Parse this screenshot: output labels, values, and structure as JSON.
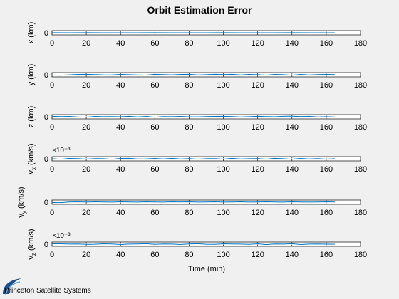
{
  "chart_data": {
    "type": "line",
    "title": "Orbit Estimation Error",
    "xlabel": "Time (min)",
    "xlim": [
      0,
      180
    ],
    "xticks": [
      "0",
      "20",
      "40",
      "60",
      "80",
      "100",
      "120",
      "140",
      "160",
      "180"
    ],
    "line_color": "#0072bd",
    "grid": false,
    "subplots": [
      {
        "ylabel": "x (km)",
        "yticks": [
          "0"
        ],
        "ylim": [
          -1,
          1
        ],
        "multiplier": "",
        "x": [
          0,
          10,
          20,
          30,
          40,
          50,
          60,
          70,
          80,
          90,
          100,
          110,
          120,
          130,
          140,
          150,
          160,
          165
        ],
        "y": [
          0.05,
          0.0,
          0.05,
          0.0,
          0.02,
          0.0,
          0.04,
          0.0,
          0.02,
          0.0,
          0.05,
          0.0,
          0.02,
          0.0,
          0.04,
          0.0,
          0.02,
          0.0
        ]
      },
      {
        "ylabel": "y (km)",
        "yticks": [
          "0"
        ],
        "ylim": [
          -1,
          1
        ],
        "multiplier": "",
        "x": [
          0,
          5,
          10,
          15,
          20,
          25,
          30,
          35,
          40,
          45,
          50,
          55,
          60,
          65,
          70,
          75,
          80,
          85,
          90,
          95,
          100,
          105,
          110,
          115,
          120,
          125,
          130,
          135,
          140,
          145,
          150,
          155,
          160,
          165
        ],
        "y": [
          -0.15,
          -0.2,
          -0.05,
          0.15,
          0.2,
          0.1,
          -0.05,
          -0.1,
          0.15,
          0.05,
          -0.1,
          -0.15,
          0.2,
          0.1,
          -0.05,
          0.15,
          0.2,
          -0.1,
          0.05,
          0.2,
          0.1,
          0.2,
          -0.1,
          0.15,
          0.05,
          -0.15,
          0.15,
          0.05,
          -0.2,
          0.15,
          -0.1,
          0.1,
          0.15,
          0.1
        ]
      },
      {
        "ylabel": "z (km)",
        "yticks": [
          "0"
        ],
        "ylim": [
          -1,
          1
        ],
        "multiplier": "",
        "x": [
          0,
          5,
          10,
          15,
          20,
          25,
          30,
          35,
          40,
          45,
          50,
          55,
          60,
          65,
          70,
          75,
          80,
          85,
          90,
          95,
          100,
          105,
          110,
          115,
          120,
          125,
          130,
          135,
          140,
          145,
          150,
          155,
          160,
          165
        ],
        "y": [
          0.2,
          0.1,
          0.15,
          -0.1,
          -0.2,
          0.15,
          0.05,
          0.1,
          0.0,
          0.2,
          -0.1,
          0.15,
          -0.2,
          0.1,
          0.05,
          0.15,
          0.0,
          -0.05,
          0.1,
          0.15,
          0.2,
          0.1,
          -0.1,
          0.05,
          0.2,
          0.1,
          0.0,
          0.2,
          0.3,
          0.1,
          0.2,
          -0.1,
          0.05,
          -0.1
        ]
      },
      {
        "ylabel": "vx (km/s)",
        "yticks": [
          "0"
        ],
        "ylim": [
          -1,
          1
        ],
        "multiplier": "×10⁻³",
        "x": [
          0,
          5,
          10,
          15,
          20,
          25,
          30,
          35,
          40,
          45,
          50,
          55,
          60,
          65,
          70,
          75,
          80,
          85,
          90,
          95,
          100,
          105,
          110,
          115,
          120,
          125,
          130,
          135,
          140,
          145,
          150,
          155,
          160,
          165
        ],
        "y": [
          0.05,
          -0.2,
          0.15,
          0.1,
          -0.15,
          0.1,
          0.05,
          -0.2,
          0.15,
          0.2,
          -0.1,
          -0.05,
          0.15,
          -0.1,
          0.2,
          -0.1,
          0.1,
          -0.15,
          0.05,
          0.1,
          -0.15,
          0.2,
          -0.1,
          0.05,
          0.1,
          -0.15,
          0.2,
          0.05,
          -0.2,
          0.15,
          -0.1,
          0.1,
          -0.15,
          0.05
        ]
      },
      {
        "ylabel": "vy (km/s)",
        "yticks": [
          "0"
        ],
        "ylim": [
          -1,
          1
        ],
        "multiplier": "",
        "x": [
          0,
          5,
          10,
          15,
          20,
          25,
          30,
          35,
          40,
          45,
          50,
          55,
          60,
          65,
          70,
          75,
          80,
          85,
          90,
          95,
          100,
          105,
          110,
          115,
          120,
          125,
          130,
          135,
          140,
          145,
          150,
          155,
          160,
          165
        ],
        "y": [
          -0.15,
          -0.2,
          0.1,
          0.15,
          0.05,
          0.15,
          0.1,
          0.05,
          0.15,
          0.1,
          0.05,
          0.15,
          0.1,
          0.05,
          0.15,
          0.1,
          0.15,
          0.05,
          0.1,
          0.15,
          0.05,
          0.1,
          0.15,
          0.05,
          0.1,
          0.15,
          0.1,
          0.05,
          0.15,
          0.1,
          0.05,
          0.1,
          0.15,
          0.1
        ]
      },
      {
        "ylabel": "vz (km/s)",
        "yticks": [
          "0"
        ],
        "ylim": [
          -1,
          1
        ],
        "multiplier": "×10⁻³",
        "x": [
          0,
          5,
          10,
          15,
          20,
          25,
          30,
          35,
          40,
          45,
          50,
          55,
          60,
          65,
          70,
          75,
          80,
          85,
          90,
          95,
          100,
          105,
          110,
          115,
          120,
          125,
          130,
          135,
          140,
          145,
          150,
          155,
          160,
          165
        ],
        "y": [
          0.2,
          0.15,
          0.05,
          0.1,
          -0.1,
          -0.05,
          0.15,
          0.1,
          -0.15,
          0.05,
          0.1,
          0.2,
          -0.1,
          0.1,
          0.05,
          -0.15,
          0.1,
          0.2,
          -0.05,
          -0.1,
          0.15,
          0.1,
          0.05,
          -0.1,
          0.15,
          -0.2,
          0.1,
          0.05,
          0.2,
          -0.15,
          0.05,
          0.1,
          0.0,
          -0.05
        ]
      }
    ]
  },
  "branding": {
    "text": "Princeton Satellite Systems"
  }
}
